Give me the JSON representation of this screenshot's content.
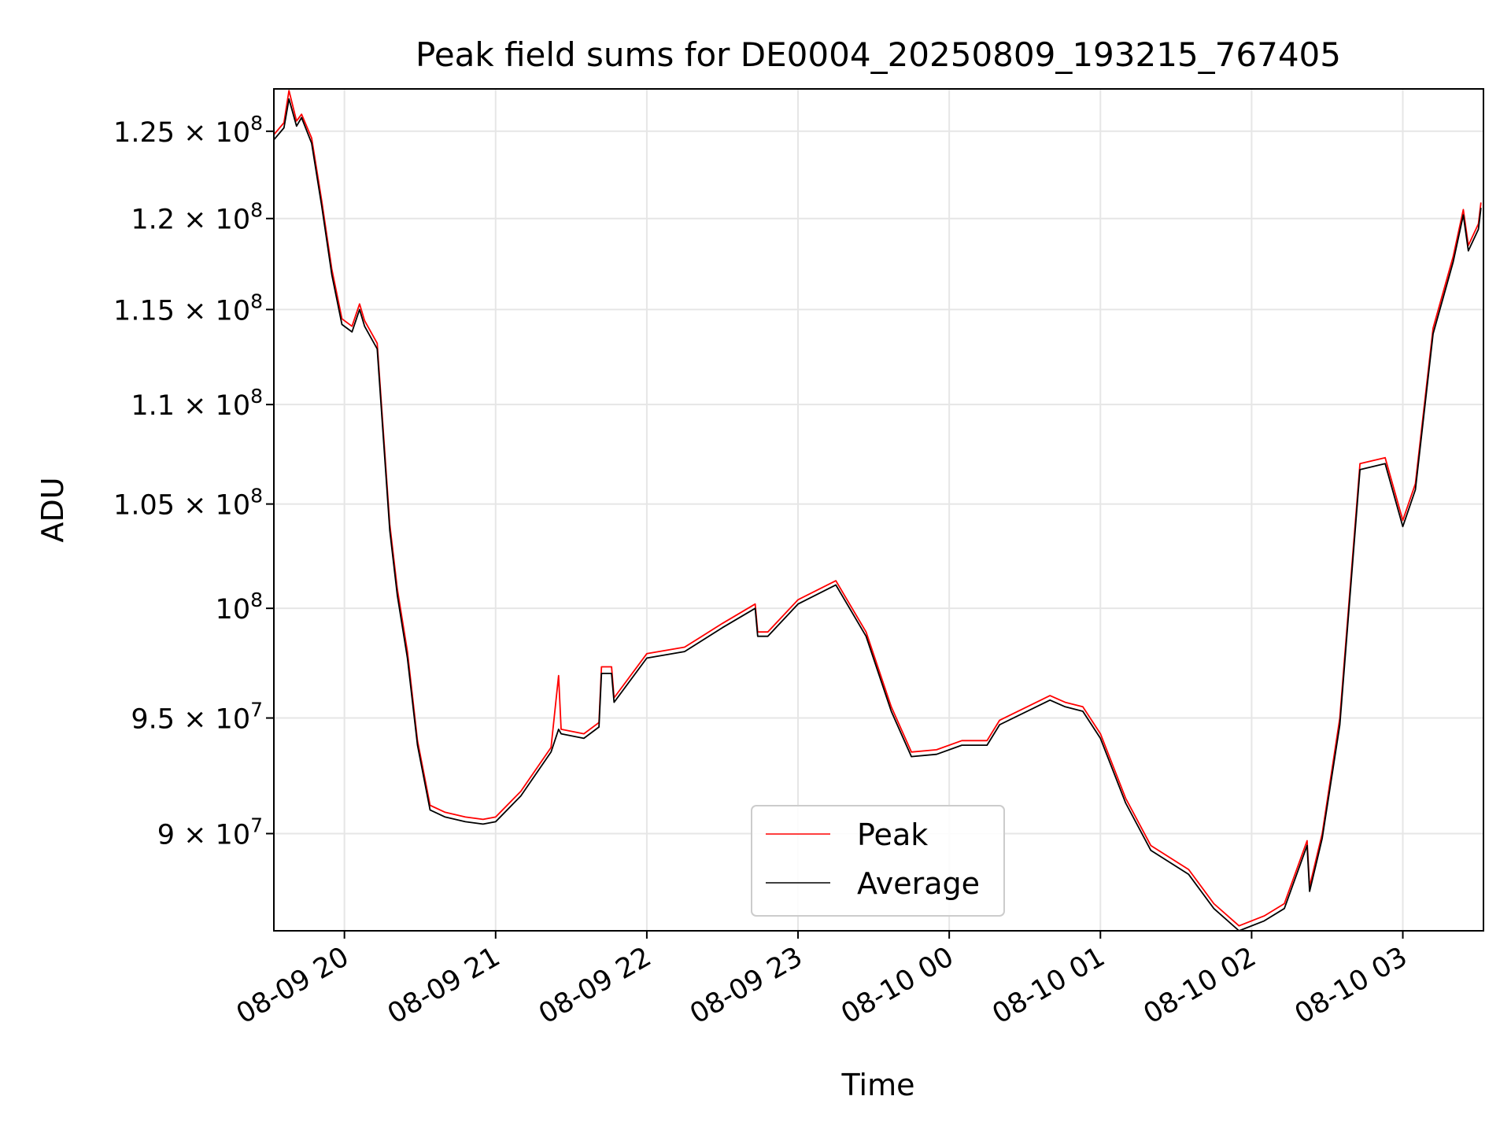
{
  "chart_data": {
    "type": "line",
    "title": "Peak field sums for DE0004_20250809_193215_767405",
    "xlabel": "Time",
    "ylabel": "ADU",
    "x_ticks": [
      "08-09 20",
      "08-09 21",
      "08-09 22",
      "08-09 23",
      "08-10 00",
      "08-10 01",
      "08-10 02",
      "08-10 03"
    ],
    "xlim": [
      "2025-08-09 19:32",
      "2025-08-10 03:32"
    ],
    "y_scale": "log",
    "ylim": [
      86000000,
      127500000
    ],
    "y_ticks": [
      {
        "value": 90000000,
        "label": "9 × 10^7"
      },
      {
        "value": 95000000,
        "label": "9.5 × 10^7"
      },
      {
        "value": 100000000,
        "label": "10^8"
      },
      {
        "value": 105000000,
        "label": "1.05 × 10^8"
      },
      {
        "value": 110000000,
        "label": "1.1 × 10^8"
      },
      {
        "value": 115000000,
        "label": "1.15 × 10^8"
      },
      {
        "value": 120000000,
        "label": "1.2 × 10^8"
      },
      {
        "value": 125000000,
        "label": "1.25 × 10^8"
      }
    ],
    "grid": true,
    "legend_position": "lower-center",
    "series": [
      {
        "name": "Peak",
        "color": "#ff0000",
        "points": [
          [
            "2025-08-09 19:32",
            124800000
          ],
          [
            "2025-08-09 19:36",
            125500000
          ],
          [
            "2025-08-09 19:38",
            127400000
          ],
          [
            "2025-08-09 19:41",
            125600000
          ],
          [
            "2025-08-09 19:43",
            126000000
          ],
          [
            "2025-08-09 19:47",
            124600000
          ],
          [
            "2025-08-09 19:51",
            121000000
          ],
          [
            "2025-08-09 19:55",
            117200000
          ],
          [
            "2025-08-09 19:59",
            114500000
          ],
          [
            "2025-08-09 20:03",
            114100000
          ],
          [
            "2025-08-09 20:06",
            115300000
          ],
          [
            "2025-08-09 20:08",
            114400000
          ],
          [
            "2025-08-09 20:13",
            113200000
          ],
          [
            "2025-08-09 20:18",
            104000000
          ],
          [
            "2025-08-09 20:21",
            100900000
          ],
          [
            "2025-08-09 20:25",
            98000000
          ],
          [
            "2025-08-09 20:29",
            94000000
          ],
          [
            "2025-08-09 20:34",
            91200000
          ],
          [
            "2025-08-09 20:40",
            90900000
          ],
          [
            "2025-08-09 20:48",
            90700000
          ],
          [
            "2025-08-09 20:55",
            90600000
          ],
          [
            "2025-08-09 21:00",
            90700000
          ],
          [
            "2025-08-09 21:10",
            91800000
          ],
          [
            "2025-08-09 21:22",
            93700000
          ],
          [
            "2025-08-09 21:25",
            96900000
          ],
          [
            "2025-08-09 21:26",
            94500000
          ],
          [
            "2025-08-09 21:35",
            94300000
          ],
          [
            "2025-08-09 21:41",
            94800000
          ],
          [
            "2025-08-09 21:42",
            97300000
          ],
          [
            "2025-08-09 21:46",
            97300000
          ],
          [
            "2025-08-09 21:47",
            95900000
          ],
          [
            "2025-08-09 22:00",
            97900000
          ],
          [
            "2025-08-09 22:15",
            98200000
          ],
          [
            "2025-08-09 22:30",
            99300000
          ],
          [
            "2025-08-09 22:43",
            100200000
          ],
          [
            "2025-08-09 22:44",
            98900000
          ],
          [
            "2025-08-09 22:48",
            98900000
          ],
          [
            "2025-08-09 23:00",
            100400000
          ],
          [
            "2025-08-09 23:15",
            101300000
          ],
          [
            "2025-08-09 23:27",
            98900000
          ],
          [
            "2025-08-09 23:37",
            95500000
          ],
          [
            "2025-08-09 23:45",
            93500000
          ],
          [
            "2025-08-09 23:55",
            93600000
          ],
          [
            "2025-08-10 00:05",
            94000000
          ],
          [
            "2025-08-10 00:15",
            94000000
          ],
          [
            "2025-08-10 00:20",
            94900000
          ],
          [
            "2025-08-10 00:40",
            96000000
          ],
          [
            "2025-08-10 00:46",
            95700000
          ],
          [
            "2025-08-10 00:53",
            95500000
          ],
          [
            "2025-08-10 01:00",
            94300000
          ],
          [
            "2025-08-10 01:10",
            91500000
          ],
          [
            "2025-08-10 01:20",
            89500000
          ],
          [
            "2025-08-10 01:35",
            88500000
          ],
          [
            "2025-08-10 01:45",
            87100000
          ],
          [
            "2025-08-10 01:55",
            86200000
          ],
          [
            "2025-08-10 02:05",
            86600000
          ],
          [
            "2025-08-10 02:13",
            87100000
          ],
          [
            "2025-08-10 02:22",
            89700000
          ],
          [
            "2025-08-10 02:23",
            87800000
          ],
          [
            "2025-08-10 02:28",
            90000000
          ],
          [
            "2025-08-10 02:35",
            95000000
          ],
          [
            "2025-08-10 02:43",
            107000000
          ],
          [
            "2025-08-10 02:53",
            107300000
          ],
          [
            "2025-08-10 03:00",
            104200000
          ],
          [
            "2025-08-10 03:05",
            106000000
          ],
          [
            "2025-08-10 03:12",
            114000000
          ],
          [
            "2025-08-10 03:20",
            117900000
          ],
          [
            "2025-08-10 03:24",
            120500000
          ],
          [
            "2025-08-10 03:26",
            118500000
          ],
          [
            "2025-08-10 03:30",
            119700000
          ],
          [
            "2025-08-10 03:31",
            120900000
          ]
        ]
      },
      {
        "name": "Average",
        "color": "#000000",
        "points": [
          [
            "2025-08-09 19:32",
            124500000
          ],
          [
            "2025-08-09 19:36",
            125200000
          ],
          [
            "2025-08-09 19:38",
            126900000
          ],
          [
            "2025-08-09 19:41",
            125300000
          ],
          [
            "2025-08-09 19:43",
            125800000
          ],
          [
            "2025-08-09 19:47",
            124300000
          ],
          [
            "2025-08-09 19:51",
            120700000
          ],
          [
            "2025-08-09 19:55",
            116900000
          ],
          [
            "2025-08-09 19:59",
            114200000
          ],
          [
            "2025-08-09 20:03",
            113800000
          ],
          [
            "2025-08-09 20:06",
            115000000
          ],
          [
            "2025-08-09 20:08",
            114100000
          ],
          [
            "2025-08-09 20:13",
            112900000
          ],
          [
            "2025-08-09 20:18",
            103700000
          ],
          [
            "2025-08-09 20:21",
            100600000
          ],
          [
            "2025-08-09 20:25",
            97700000
          ],
          [
            "2025-08-09 20:29",
            93800000
          ],
          [
            "2025-08-09 20:34",
            91000000
          ],
          [
            "2025-08-09 20:40",
            90700000
          ],
          [
            "2025-08-09 20:48",
            90500000
          ],
          [
            "2025-08-09 20:55",
            90400000
          ],
          [
            "2025-08-09 21:00",
            90500000
          ],
          [
            "2025-08-09 21:10",
            91600000
          ],
          [
            "2025-08-09 21:22",
            93500000
          ],
          [
            "2025-08-09 21:25",
            94500000
          ],
          [
            "2025-08-09 21:26",
            94300000
          ],
          [
            "2025-08-09 21:35",
            94100000
          ],
          [
            "2025-08-09 21:41",
            94600000
          ],
          [
            "2025-08-09 21:42",
            97000000
          ],
          [
            "2025-08-09 21:46",
            97000000
          ],
          [
            "2025-08-09 21:47",
            95700000
          ],
          [
            "2025-08-09 22:00",
            97700000
          ],
          [
            "2025-08-09 22:15",
            98000000
          ],
          [
            "2025-08-09 22:30",
            99100000
          ],
          [
            "2025-08-09 22:43",
            100000000
          ],
          [
            "2025-08-09 22:44",
            98700000
          ],
          [
            "2025-08-09 22:48",
            98700000
          ],
          [
            "2025-08-09 23:00",
            100200000
          ],
          [
            "2025-08-09 23:15",
            101100000
          ],
          [
            "2025-08-09 23:27",
            98700000
          ],
          [
            "2025-08-09 23:37",
            95300000
          ],
          [
            "2025-08-09 23:45",
            93300000
          ],
          [
            "2025-08-09 23:55",
            93400000
          ],
          [
            "2025-08-10 00:05",
            93800000
          ],
          [
            "2025-08-10 00:15",
            93800000
          ],
          [
            "2025-08-10 00:20",
            94700000
          ],
          [
            "2025-08-10 00:40",
            95800000
          ],
          [
            "2025-08-10 00:46",
            95500000
          ],
          [
            "2025-08-10 00:53",
            95300000
          ],
          [
            "2025-08-10 01:00",
            94100000
          ],
          [
            "2025-08-10 01:10",
            91300000
          ],
          [
            "2025-08-10 01:20",
            89300000
          ],
          [
            "2025-08-10 01:35",
            88300000
          ],
          [
            "2025-08-10 01:45",
            86900000
          ],
          [
            "2025-08-10 01:55",
            86000000
          ],
          [
            "2025-08-10 02:05",
            86400000
          ],
          [
            "2025-08-10 02:13",
            86900000
          ],
          [
            "2025-08-10 02:22",
            89500000
          ],
          [
            "2025-08-10 02:23",
            87600000
          ],
          [
            "2025-08-10 02:28",
            89800000
          ],
          [
            "2025-08-10 02:35",
            94700000
          ],
          [
            "2025-08-10 02:43",
            106700000
          ],
          [
            "2025-08-10 02:53",
            107000000
          ],
          [
            "2025-08-10 03:00",
            103900000
          ],
          [
            "2025-08-10 03:05",
            105700000
          ],
          [
            "2025-08-10 03:12",
            113700000
          ],
          [
            "2025-08-10 03:20",
            117600000
          ],
          [
            "2025-08-10 03:24",
            120200000
          ],
          [
            "2025-08-10 03:26",
            118200000
          ],
          [
            "2025-08-10 03:30",
            119400000
          ],
          [
            "2025-08-10 03:31",
            120600000
          ]
        ]
      }
    ]
  }
}
